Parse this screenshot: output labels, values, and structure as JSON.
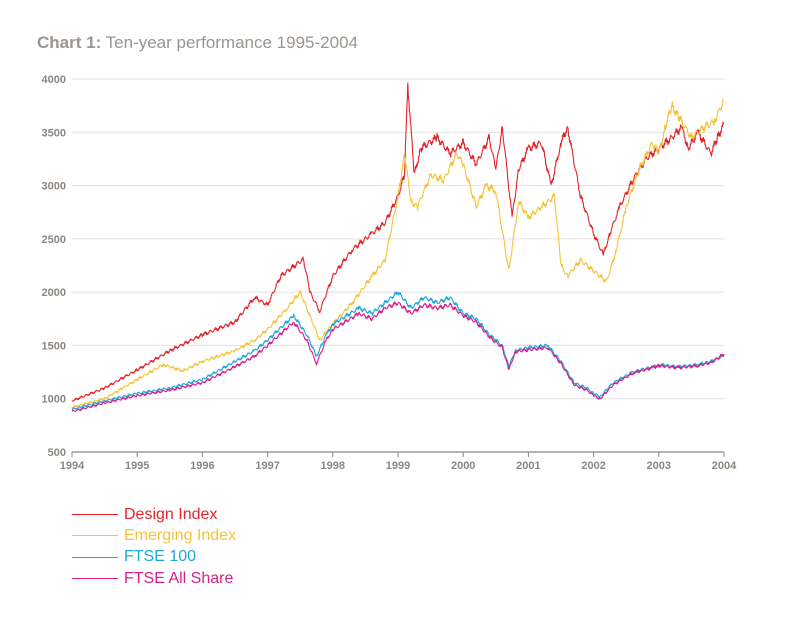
{
  "title": {
    "prefix": "Chart 1:",
    "text": "Ten-year performance 1995-2004"
  },
  "chart_data": {
    "type": "line",
    "title": "Chart 1: Ten-year performance 1995-2004",
    "xlabel": "",
    "ylabel": "",
    "xlim": [
      1994,
      2004
    ],
    "ylim": [
      500,
      4000
    ],
    "x_ticks": [
      "1994",
      "1995",
      "1996",
      "1997",
      "1998",
      "1999",
      "2000",
      "2001",
      "2002",
      "2003",
      "2004"
    ],
    "y_ticks": [
      "500",
      "1000",
      "1500",
      "2000",
      "2500",
      "3000",
      "3500",
      "4000"
    ],
    "grid": "horizontal",
    "legend_position": "bottom-left",
    "series": [
      {
        "name": "Design Index",
        "color": "#e3242b",
        "points": [
          [
            1994,
            980
          ],
          [
            1994.5,
            1100
          ],
          [
            1995,
            1270
          ],
          [
            1995.5,
            1450
          ],
          [
            1996,
            1600
          ],
          [
            1996.5,
            1720
          ],
          [
            1996.8,
            1950
          ],
          [
            1997,
            1880
          ],
          [
            1997.2,
            2150
          ],
          [
            1997.55,
            2310
          ],
          [
            1997.65,
            2000
          ],
          [
            1997.8,
            1820
          ],
          [
            1998,
            2150
          ],
          [
            1998.3,
            2400
          ],
          [
            1998.6,
            2550
          ],
          [
            1998.8,
            2650
          ],
          [
            1999,
            2900
          ],
          [
            1999.1,
            3100
          ],
          [
            1999.15,
            3950
          ],
          [
            1999.25,
            3100
          ],
          [
            1999.35,
            3350
          ],
          [
            1999.6,
            3450
          ],
          [
            1999.8,
            3300
          ],
          [
            2000,
            3400
          ],
          [
            2000.2,
            3200
          ],
          [
            2000.4,
            3450
          ],
          [
            2000.5,
            3150
          ],
          [
            2000.6,
            3550
          ],
          [
            2000.75,
            2700
          ],
          [
            2000.85,
            3150
          ],
          [
            2001,
            3350
          ],
          [
            2001.2,
            3400
          ],
          [
            2001.35,
            3000
          ],
          [
            2001.5,
            3400
          ],
          [
            2001.6,
            3550
          ],
          [
            2001.8,
            2900
          ],
          [
            2002,
            2550
          ],
          [
            2002.15,
            2350
          ],
          [
            2002.25,
            2550
          ],
          [
            2002.4,
            2800
          ],
          [
            2002.6,
            3050
          ],
          [
            2002.8,
            3250
          ],
          [
            2003,
            3350
          ],
          [
            2003.2,
            3450
          ],
          [
            2003.35,
            3550
          ],
          [
            2003.45,
            3350
          ],
          [
            2003.6,
            3500
          ],
          [
            2003.8,
            3300
          ],
          [
            2003.9,
            3450
          ],
          [
            2004,
            3580
          ]
        ]
      },
      {
        "name": "Emerging Index",
        "color": "#f5c339",
        "points": [
          [
            1994,
            920
          ],
          [
            1994.5,
            1000
          ],
          [
            1995,
            1180
          ],
          [
            1995.4,
            1320
          ],
          [
            1995.7,
            1260
          ],
          [
            1996,
            1350
          ],
          [
            1996.5,
            1450
          ],
          [
            1996.8,
            1550
          ],
          [
            1997,
            1650
          ],
          [
            1997.3,
            1850
          ],
          [
            1997.5,
            2000
          ],
          [
            1997.7,
            1700
          ],
          [
            1997.8,
            1550
          ],
          [
            1998,
            1700
          ],
          [
            1998.3,
            1900
          ],
          [
            1998.6,
            2150
          ],
          [
            1998.8,
            2300
          ],
          [
            1999,
            2900
          ],
          [
            1999.1,
            3300
          ],
          [
            1999.2,
            2850
          ],
          [
            1999.3,
            2800
          ],
          [
            1999.5,
            3100
          ],
          [
            1999.7,
            3050
          ],
          [
            1999.9,
            3300
          ],
          [
            2000,
            3200
          ],
          [
            2000.2,
            2800
          ],
          [
            2000.35,
            3000
          ],
          [
            2000.5,
            2950
          ],
          [
            2000.7,
            2200
          ],
          [
            2000.85,
            2850
          ],
          [
            2001,
            2700
          ],
          [
            2001.2,
            2800
          ],
          [
            2001.4,
            2900
          ],
          [
            2001.5,
            2250
          ],
          [
            2001.6,
            2150
          ],
          [
            2001.8,
            2300
          ],
          [
            2002,
            2200
          ],
          [
            2002.2,
            2100
          ],
          [
            2002.35,
            2400
          ],
          [
            2002.5,
            2800
          ],
          [
            2002.7,
            3150
          ],
          [
            2002.9,
            3400
          ],
          [
            2003,
            3300
          ],
          [
            2003.1,
            3550
          ],
          [
            2003.2,
            3750
          ],
          [
            2003.3,
            3650
          ],
          [
            2003.5,
            3450
          ],
          [
            2003.7,
            3550
          ],
          [
            2003.85,
            3600
          ],
          [
            2004,
            3800
          ]
        ]
      },
      {
        "name": "FTSE 100",
        "color": "#1ca9d9",
        "points": [
          [
            1994,
            900
          ],
          [
            1994.5,
            980
          ],
          [
            1995,
            1050
          ],
          [
            1995.5,
            1100
          ],
          [
            1996,
            1180
          ],
          [
            1996.5,
            1350
          ],
          [
            1996.8,
            1450
          ],
          [
            1997,
            1550
          ],
          [
            1997.4,
            1780
          ],
          [
            1997.6,
            1600
          ],
          [
            1997.75,
            1400
          ],
          [
            1997.9,
            1600
          ],
          [
            1998,
            1700
          ],
          [
            1998.4,
            1850
          ],
          [
            1998.6,
            1800
          ],
          [
            1998.8,
            1900
          ],
          [
            1999,
            2000
          ],
          [
            1999.2,
            1850
          ],
          [
            1999.4,
            1950
          ],
          [
            1999.6,
            1900
          ],
          [
            1999.8,
            1950
          ],
          [
            2000,
            1800
          ],
          [
            2000.2,
            1750
          ],
          [
            2000.4,
            1600
          ],
          [
            2000.6,
            1500
          ],
          [
            2000.7,
            1300
          ],
          [
            2000.8,
            1450
          ],
          [
            2001,
            1480
          ],
          [
            2001.3,
            1500
          ],
          [
            2001.5,
            1350
          ],
          [
            2001.7,
            1150
          ],
          [
            2001.9,
            1100
          ],
          [
            2002,
            1050
          ],
          [
            2002.1,
            1020
          ],
          [
            2002.3,
            1150
          ],
          [
            2002.6,
            1250
          ],
          [
            2002.9,
            1300
          ],
          [
            2003,
            1320
          ],
          [
            2003.3,
            1300
          ],
          [
            2003.6,
            1320
          ],
          [
            2003.8,
            1350
          ],
          [
            2004,
            1400
          ]
        ]
      },
      {
        "name": "FTSE All Share",
        "color": "#d81e8c",
        "points": [
          [
            1994,
            880
          ],
          [
            1994.5,
            960
          ],
          [
            1995,
            1030
          ],
          [
            1995.5,
            1080
          ],
          [
            1996,
            1150
          ],
          [
            1996.5,
            1300
          ],
          [
            1996.8,
            1400
          ],
          [
            1997,
            1500
          ],
          [
            1997.4,
            1720
          ],
          [
            1997.6,
            1550
          ],
          [
            1997.75,
            1330
          ],
          [
            1997.9,
            1550
          ],
          [
            1998,
            1650
          ],
          [
            1998.4,
            1800
          ],
          [
            1998.6,
            1750
          ],
          [
            1998.8,
            1850
          ],
          [
            1999,
            1900
          ],
          [
            1999.2,
            1800
          ],
          [
            1999.4,
            1880
          ],
          [
            1999.6,
            1850
          ],
          [
            1999.8,
            1880
          ],
          [
            2000,
            1780
          ],
          [
            2000.2,
            1720
          ],
          [
            2000.4,
            1580
          ],
          [
            2000.6,
            1480
          ],
          [
            2000.7,
            1270
          ],
          [
            2000.8,
            1440
          ],
          [
            2001,
            1460
          ],
          [
            2001.3,
            1480
          ],
          [
            2001.5,
            1330
          ],
          [
            2001.7,
            1130
          ],
          [
            2001.9,
            1080
          ],
          [
            2002,
            1030
          ],
          [
            2002.1,
            1000
          ],
          [
            2002.3,
            1130
          ],
          [
            2002.6,
            1240
          ],
          [
            2002.9,
            1290
          ],
          [
            2003,
            1310
          ],
          [
            2003.3,
            1290
          ],
          [
            2003.6,
            1310
          ],
          [
            2003.8,
            1340
          ],
          [
            2004,
            1420
          ]
        ]
      }
    ]
  }
}
